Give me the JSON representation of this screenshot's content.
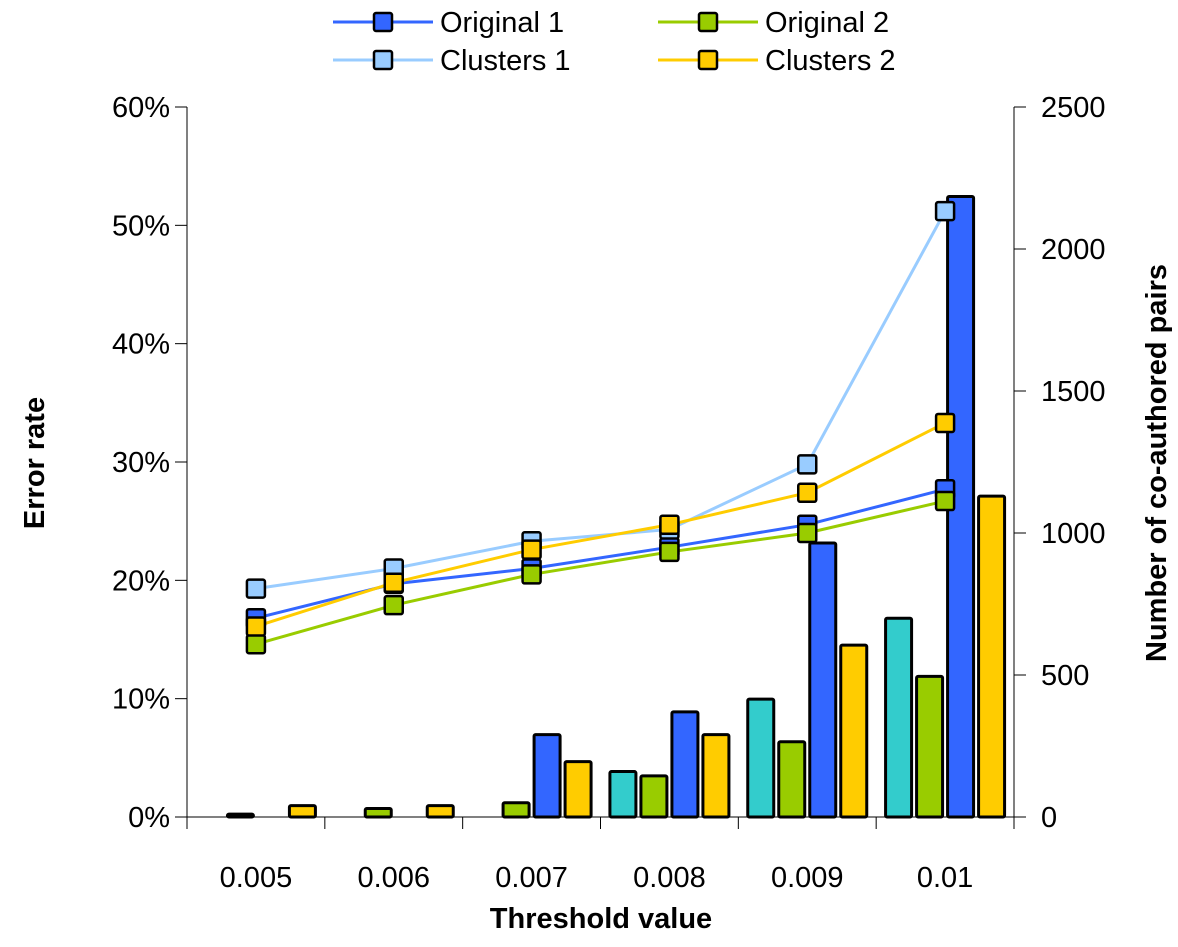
{
  "chart_data": {
    "type": "bar",
    "categories": [
      "0.005",
      "0.006",
      "0.007",
      "0.008",
      "0.009",
      "0.01"
    ],
    "xlabel": "Threshold value",
    "ylabel": "Error rate",
    "y2label": "Number of co-authored pairs",
    "ylim": [
      0,
      0.6
    ],
    "y2lim": [
      0,
      2500
    ],
    "yticks": [
      "0%",
      "10%",
      "20%",
      "30%",
      "40%",
      "50%",
      "60%"
    ],
    "y2ticks": [
      "0",
      "500",
      "1000",
      "1500",
      "2000",
      "2500"
    ],
    "legend_position": "top",
    "bar_series": [
      {
        "values": [
          0,
          0,
          0,
          160,
          415,
          700
        ],
        "color": "#33cccc"
      },
      {
        "values": [
          10,
          30,
          50,
          145,
          265,
          495
        ],
        "color": "#99cc00"
      },
      {
        "values": [
          0,
          0,
          290,
          370,
          965,
          2185
        ],
        "color": "#3366ff"
      },
      {
        "values": [
          40,
          40,
          195,
          290,
          605,
          1130
        ],
        "color": "#ffcc00"
      }
    ],
    "line_series": [
      {
        "name": "Original 1",
        "values": [
          0.168,
          0.197,
          0.21,
          0.228,
          0.247,
          0.277
        ],
        "color": "#3366ff",
        "marker": "#3366ff"
      },
      {
        "name": "Original 2",
        "values": [
          0.146,
          0.179,
          0.205,
          0.224,
          0.24,
          0.267
        ],
        "color": "#99cc00",
        "marker": "#99cc00"
      },
      {
        "name": "Clusters 1",
        "values": [
          0.193,
          0.21,
          0.233,
          0.243,
          0.298,
          0.512
        ],
        "color": "#99ccff",
        "marker": "#99ccff"
      },
      {
        "name": "Clusters 2",
        "values": [
          0.161,
          0.198,
          0.226,
          0.247,
          0.274,
          0.333
        ],
        "color": "#ffcc00",
        "marker": "#ffcc00"
      }
    ]
  }
}
